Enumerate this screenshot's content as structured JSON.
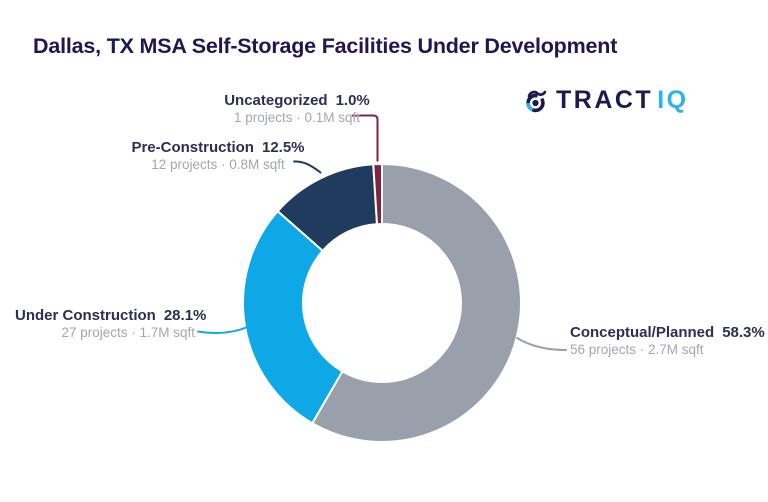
{
  "title": "Dallas, TX MSA Self-Storage Facilities Under Development",
  "logo": {
    "brand_primary": "TRACT",
    "brand_secondary": "IQ",
    "primary_color": "#1b1b4d",
    "secondary_color": "#2cb4ea"
  },
  "colors": {
    "background": "#ffffff",
    "title_text": "#1d1752",
    "label_text": "#2e2d56",
    "detail_text": "#a2a6ae"
  },
  "chart_data": {
    "type": "pie",
    "subtype": "donut",
    "title": "Dallas, TX MSA Self-Storage Facilities Under Development",
    "start_angle_deg": 0,
    "clockwise": true,
    "legend_position": "callout-labels",
    "segments": [
      {
        "label": "Conceptual/Planned",
        "pct_label": "58.3%",
        "value_pct": 58.3,
        "projects": 56,
        "sqft_millions": 2.7,
        "detail": "56 projects · 2.7M sqft",
        "color": "#9aa0ab"
      },
      {
        "label": "Under Construction",
        "pct_label": "28.1%",
        "value_pct": 28.1,
        "projects": 27,
        "sqft_millions": 1.7,
        "detail": "27 projects · 1.7M sqft",
        "color": "#0fa8e6"
      },
      {
        "label": "Pre-Construction",
        "pct_label": "12.5%",
        "value_pct": 12.5,
        "projects": 12,
        "sqft_millions": 0.8,
        "detail": "12 projects · 0.8M sqft",
        "color": "#1f3c5f"
      },
      {
        "label": "Uncategorized",
        "pct_label": "1.0%",
        "value_pct": 1.0,
        "projects": 1,
        "sqft_millions": 0.1,
        "detail": "1 projects · 0.1M sqft",
        "color": "#7c2544"
      }
    ]
  }
}
